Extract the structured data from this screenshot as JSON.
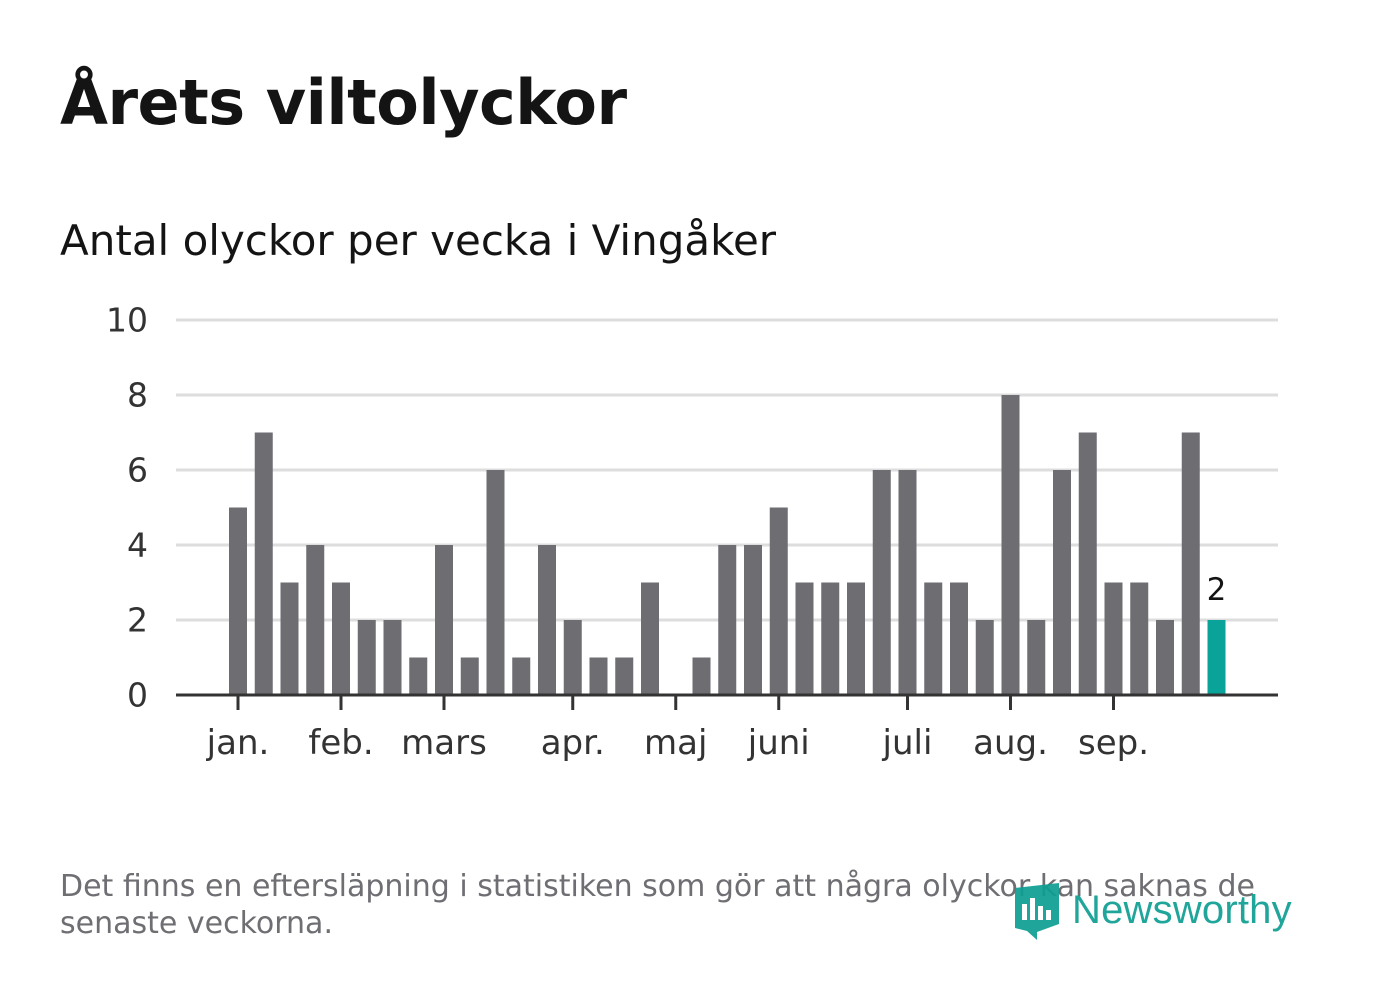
{
  "title": "Årets viltolyckor",
  "subtitle": "Antal olyckor per vecka i Vingåker",
  "footnote": "Det finns en eftersläpning i statistiken som gör att några olyckor kan saknas de senaste veckorna.",
  "logo": {
    "text": "Newsworthy"
  },
  "colors": {
    "bar": "#6e6d72",
    "highlight": "#0aa39a",
    "grid": "#dddddd",
    "axis": "#333333",
    "text": "#333333"
  },
  "chart_data": {
    "type": "bar",
    "title": "Antal olyckor per vecka i Vingåker",
    "xlabel": "",
    "ylabel": "",
    "ylim": [
      0,
      10
    ],
    "yticks": [
      0,
      2,
      4,
      6,
      8,
      10
    ],
    "weeks": [
      1,
      2,
      3,
      4,
      5,
      6,
      7,
      8,
      9,
      10,
      11,
      12,
      13,
      14,
      15,
      16,
      17,
      18,
      19,
      20,
      21,
      22,
      23,
      24,
      25,
      26,
      27,
      28,
      29,
      30,
      31,
      32,
      33,
      34,
      35,
      36,
      37,
      38,
      39
    ],
    "values": [
      5,
      7,
      3,
      4,
      3,
      2,
      2,
      1,
      4,
      1,
      6,
      1,
      4,
      2,
      1,
      1,
      3,
      0,
      1,
      4,
      4,
      5,
      3,
      3,
      3,
      6,
      6,
      3,
      3,
      2,
      8,
      2,
      6,
      7,
      3,
      3,
      2,
      7,
      2
    ],
    "highlight_index": 38,
    "highlight_label": "2",
    "month_ticks": [
      {
        "label": "jan.",
        "week": 1
      },
      {
        "label": "feb.",
        "week": 5
      },
      {
        "label": "mars",
        "week": 9
      },
      {
        "label": "apr.",
        "week": 14
      },
      {
        "label": "maj",
        "week": 18
      },
      {
        "label": "juni",
        "week": 22
      },
      {
        "label": "juli",
        "week": 27
      },
      {
        "label": "aug.",
        "week": 31
      },
      {
        "label": "sep.",
        "week": 35
      }
    ]
  }
}
